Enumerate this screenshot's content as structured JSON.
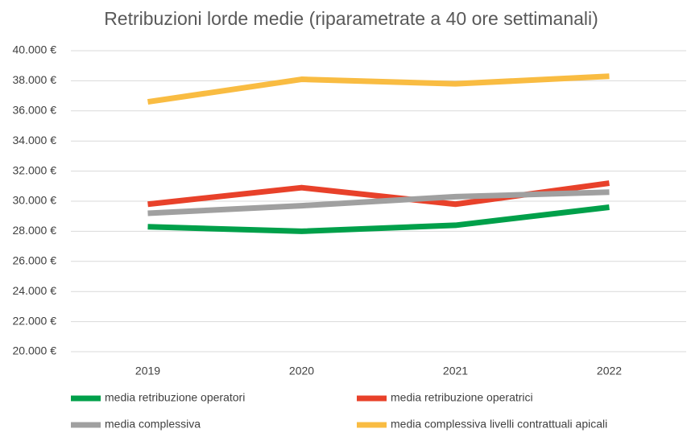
{
  "chart_data": {
    "type": "line",
    "title": "Retribuzioni lorde medie (riparametrate a 40 ore settimanali)",
    "categories": [
      "2019",
      "2020",
      "2021",
      "2022"
    ],
    "series": [
      {
        "name": "media retribuzione operatori",
        "color": "#00a04a",
        "values": [
          28300,
          28000,
          28400,
          29600
        ]
      },
      {
        "name": "media retribuzione operatrici",
        "color": "#e8412a",
        "values": [
          29800,
          30900,
          29800,
          31200
        ]
      },
      {
        "name": "media complessiva",
        "color": "#a0a0a0",
        "values": [
          29200,
          29700,
          30300,
          30600
        ]
      },
      {
        "name": "media complessiva livelli contrattuali apicali",
        "color": "#f9bc42",
        "values": [
          36600,
          38100,
          37800,
          38300
        ]
      }
    ],
    "ylim": [
      20000,
      40000
    ],
    "yticks": [
      {
        "value": 20000,
        "label": "20.000 €"
      },
      {
        "value": 22000,
        "label": "22.000 €"
      },
      {
        "value": 24000,
        "label": "24.000 €"
      },
      {
        "value": 26000,
        "label": "26.000 €"
      },
      {
        "value": 28000,
        "label": "28.000 €"
      },
      {
        "value": 30000,
        "label": "30.000 €"
      },
      {
        "value": 32000,
        "label": "32.000 €"
      },
      {
        "value": 34000,
        "label": "34.000 €"
      },
      {
        "value": 36000,
        "label": "36.000 €"
      },
      {
        "value": 38000,
        "label": "38.000 €"
      },
      {
        "value": 40000,
        "label": "40.000 €"
      }
    ],
    "grid": true
  }
}
